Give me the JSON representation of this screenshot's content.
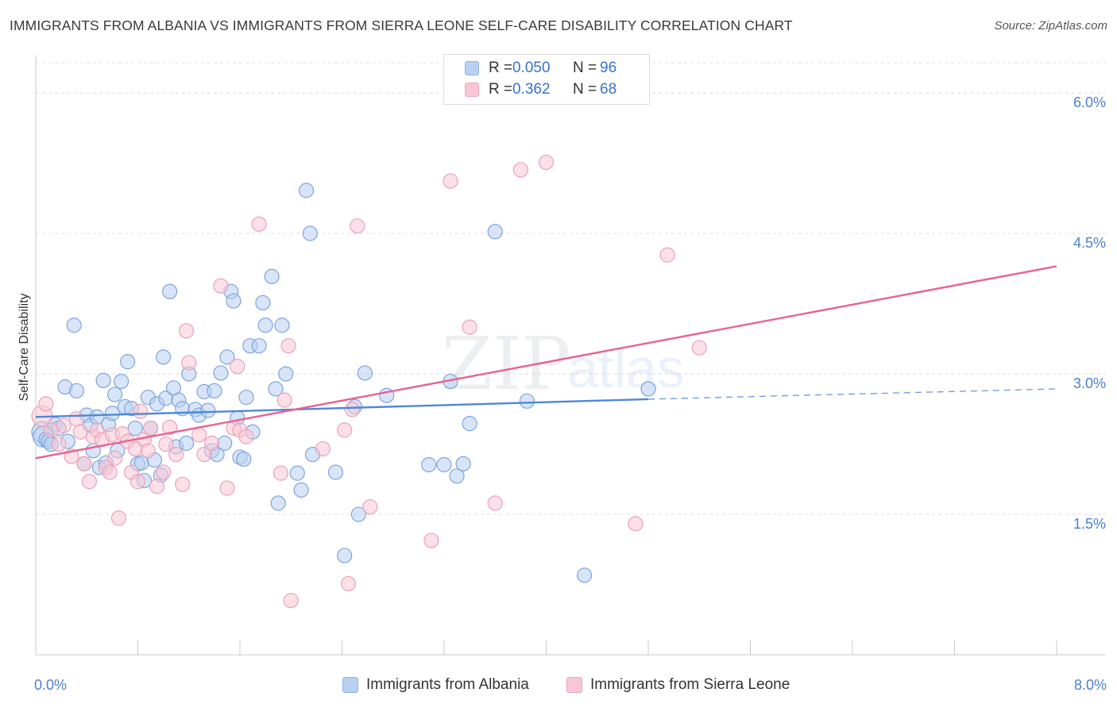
{
  "title": "IMMIGRANTS FROM ALBANIA VS IMMIGRANTS FROM SIERRA LEONE SELF-CARE DISABILITY CORRELATION CHART",
  "source": "Source: ZipAtlas.com",
  "watermark": {
    "zip": "ZIP",
    "atlas": "atlas"
  },
  "legend": {
    "series1": {
      "r_label": "R =",
      "r_value": "0.050",
      "n_label": "N =",
      "n_value": "96"
    },
    "series2": {
      "r_label": "R =",
      "r_value": "0.362",
      "n_label": "N =",
      "n_value": "68"
    }
  },
  "colors": {
    "blue": "#4f87d6",
    "blue_fill": "#b8d0f2",
    "pink": "#e8628f",
    "pink_fill": "#f8c6d4",
    "tick": "#4a7fd0"
  },
  "chart_data": {
    "type": "scatter",
    "title": "IMMIGRANTS FROM ALBANIA VS IMMIGRANTS FROM SIERRA LEONE SELF-CARE DISABILITY CORRELATION CHART",
    "xlabel": "",
    "ylabel": "Self-Care Disability",
    "xlim": [
      0,
      8.0
    ],
    "ylim": [
      0,
      6.4
    ],
    "x_tick_labels": [
      "0.0%",
      "8.0%"
    ],
    "y_ticks": [
      1.5,
      3.0,
      4.5,
      6.0
    ],
    "y_tick_labels": [
      "1.5%",
      "3.0%",
      "4.5%",
      "6.0%"
    ],
    "grid": true,
    "legend_position": "top-center",
    "series": [
      {
        "name": "Immigrants from Albania",
        "color": "#4f87d6",
        "r": 0.05,
        "n": 96,
        "trend": {
          "x": [
            0,
            4.8
          ],
          "y": [
            2.54,
            2.73
          ],
          "dashed_to": [
            8.0,
            2.84
          ]
        },
        "points": [
          [
            0.05,
            2.38
          ],
          [
            0.06,
            2.33
          ],
          [
            0.08,
            2.3
          ],
          [
            0.1,
            2.28
          ],
          [
            0.12,
            2.25
          ],
          [
            0.15,
            2.46
          ],
          [
            0.18,
            2.42
          ],
          [
            0.23,
            2.86
          ],
          [
            0.25,
            2.28
          ],
          [
            0.3,
            3.52
          ],
          [
            0.32,
            2.82
          ],
          [
            0.38,
            2.04
          ],
          [
            0.4,
            2.56
          ],
          [
            0.43,
            2.45
          ],
          [
            0.45,
            2.18
          ],
          [
            0.48,
            2.54
          ],
          [
            0.5,
            2.0
          ],
          [
            0.53,
            2.93
          ],
          [
            0.55,
            2.05
          ],
          [
            0.57,
            2.46
          ],
          [
            0.6,
            2.58
          ],
          [
            0.62,
            2.78
          ],
          [
            0.64,
            2.18
          ],
          [
            0.67,
            2.92
          ],
          [
            0.7,
            2.65
          ],
          [
            0.72,
            3.13
          ],
          [
            0.75,
            2.63
          ],
          [
            0.78,
            2.42
          ],
          [
            0.8,
            2.04
          ],
          [
            0.83,
            2.05
          ],
          [
            0.85,
            1.86
          ],
          [
            0.88,
            2.75
          ],
          [
            0.9,
            2.42
          ],
          [
            0.93,
            2.08
          ],
          [
            0.95,
            2.68
          ],
          [
            0.98,
            1.92
          ],
          [
            1.0,
            3.18
          ],
          [
            1.02,
            2.74
          ],
          [
            1.05,
            3.88
          ],
          [
            1.08,
            2.85
          ],
          [
            1.1,
            2.22
          ],
          [
            1.12,
            2.72
          ],
          [
            1.15,
            2.63
          ],
          [
            1.18,
            2.26
          ],
          [
            1.2,
            3.0
          ],
          [
            1.25,
            2.62
          ],
          [
            1.28,
            2.56
          ],
          [
            1.32,
            2.81
          ],
          [
            1.35,
            2.61
          ],
          [
            1.38,
            2.18
          ],
          [
            1.4,
            2.82
          ],
          [
            1.42,
            2.14
          ],
          [
            1.45,
            3.01
          ],
          [
            1.48,
            2.26
          ],
          [
            1.5,
            3.18
          ],
          [
            1.53,
            3.88
          ],
          [
            1.55,
            3.78
          ],
          [
            1.58,
            2.53
          ],
          [
            1.6,
            2.11
          ],
          [
            1.63,
            2.09
          ],
          [
            1.65,
            2.75
          ],
          [
            1.68,
            3.3
          ],
          [
            1.7,
            2.38
          ],
          [
            1.75,
            3.3
          ],
          [
            1.78,
            3.76
          ],
          [
            1.8,
            3.52
          ],
          [
            1.85,
            4.04
          ],
          [
            1.88,
            2.84
          ],
          [
            1.9,
            1.62
          ],
          [
            1.93,
            3.52
          ],
          [
            1.96,
            3.0
          ],
          [
            2.05,
            1.94
          ],
          [
            2.08,
            1.76
          ],
          [
            2.12,
            4.96
          ],
          [
            2.15,
            4.5
          ],
          [
            2.17,
            2.14
          ],
          [
            2.35,
            1.95
          ],
          [
            2.42,
            1.06
          ],
          [
            2.5,
            2.65
          ],
          [
            2.53,
            1.5
          ],
          [
            2.58,
            3.01
          ],
          [
            2.75,
            2.77
          ],
          [
            3.08,
            2.03
          ],
          [
            3.2,
            2.03
          ],
          [
            3.25,
            2.92
          ],
          [
            3.3,
            1.91
          ],
          [
            3.35,
            2.04
          ],
          [
            3.4,
            2.47
          ],
          [
            3.6,
            4.52
          ],
          [
            3.85,
            2.71
          ],
          [
            4.3,
            0.85
          ],
          [
            4.8,
            2.84
          ]
        ]
      },
      {
        "name": "Immigrants from Sierra Leone",
        "color": "#e8628f",
        "r": 0.362,
        "n": 68,
        "trend": {
          "x": [
            0,
            8.0
          ],
          "y": [
            2.1,
            4.15
          ]
        },
        "points": [
          [
            0.05,
            2.55
          ],
          [
            0.08,
            2.68
          ],
          [
            0.12,
            2.4
          ],
          [
            0.18,
            2.25
          ],
          [
            0.22,
            2.45
          ],
          [
            0.28,
            2.12
          ],
          [
            0.32,
            2.52
          ],
          [
            0.35,
            2.38
          ],
          [
            0.38,
            2.04
          ],
          [
            0.42,
            1.85
          ],
          [
            0.45,
            2.33
          ],
          [
            0.48,
            2.4
          ],
          [
            0.52,
            2.3
          ],
          [
            0.55,
            2.0
          ],
          [
            0.58,
            1.95
          ],
          [
            0.6,
            2.35
          ],
          [
            0.62,
            2.1
          ],
          [
            0.65,
            1.46
          ],
          [
            0.68,
            2.36
          ],
          [
            0.72,
            2.28
          ],
          [
            0.75,
            1.95
          ],
          [
            0.78,
            2.2
          ],
          [
            0.8,
            1.85
          ],
          [
            0.82,
            2.6
          ],
          [
            0.85,
            2.3
          ],
          [
            0.88,
            2.18
          ],
          [
            0.9,
            2.42
          ],
          [
            0.95,
            1.8
          ],
          [
            1.0,
            1.95
          ],
          [
            1.02,
            2.25
          ],
          [
            1.05,
            2.43
          ],
          [
            1.1,
            2.14
          ],
          [
            1.15,
            1.82
          ],
          [
            1.18,
            3.46
          ],
          [
            1.2,
            3.12
          ],
          [
            1.28,
            2.35
          ],
          [
            1.32,
            2.14
          ],
          [
            1.38,
            2.26
          ],
          [
            1.45,
            3.94
          ],
          [
            1.5,
            1.78
          ],
          [
            1.55,
            2.42
          ],
          [
            1.58,
            3.08
          ],
          [
            1.6,
            2.4
          ],
          [
            1.65,
            2.33
          ],
          [
            1.75,
            4.6
          ],
          [
            1.92,
            1.94
          ],
          [
            1.95,
            2.72
          ],
          [
            1.98,
            3.3
          ],
          [
            2.0,
            0.58
          ],
          [
            2.25,
            2.2
          ],
          [
            2.42,
            2.4
          ],
          [
            2.45,
            0.76
          ],
          [
            2.48,
            2.62
          ],
          [
            2.52,
            4.58
          ],
          [
            2.62,
            1.58
          ],
          [
            3.1,
            1.22
          ],
          [
            3.25,
            5.06
          ],
          [
            3.4,
            3.5
          ],
          [
            3.6,
            1.62
          ],
          [
            3.8,
            5.18
          ],
          [
            4.0,
            5.26
          ],
          [
            4.7,
            1.4
          ],
          [
            4.95,
            4.27
          ],
          [
            5.2,
            3.28
          ]
        ]
      }
    ]
  },
  "bottom_legend": {
    "series1": "Immigrants from Albania",
    "series2": "Immigrants from Sierra Leone"
  }
}
